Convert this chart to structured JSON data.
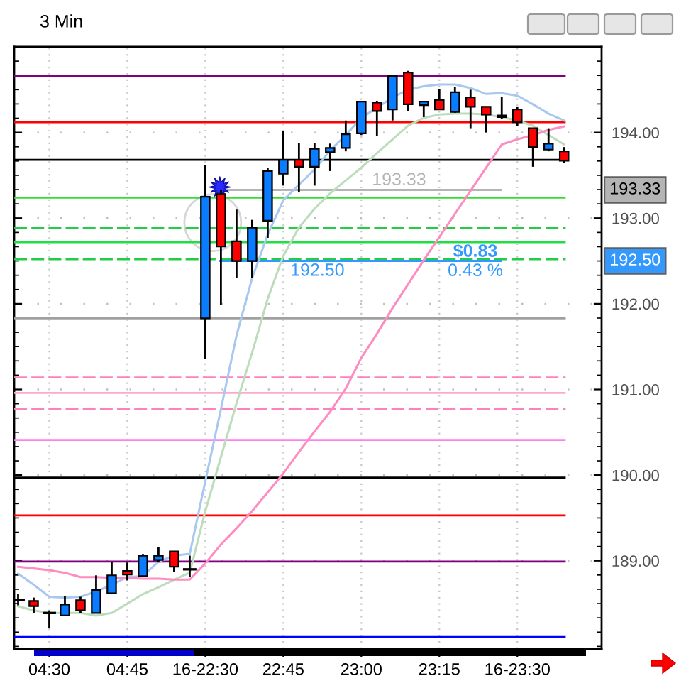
{
  "chart_data": {
    "type": "candlestick",
    "title": "3 Min",
    "categories": [
      null,
      null,
      "04:30",
      null,
      null,
      null,
      null,
      "04:45",
      null,
      null,
      null,
      null,
      "16-22:30",
      null,
      null,
      null,
      null,
      "22:45",
      null,
      null,
      null,
      null,
      "23:00",
      null,
      null,
      null,
      null,
      "23:15",
      null,
      null,
      null,
      null,
      "16-23:30",
      null,
      null,
      null
    ],
    "ohlc": [
      [
        188.54,
        188.61,
        188.48,
        188.54
      ],
      [
        188.53,
        188.57,
        188.39,
        188.47
      ],
      [
        188.39,
        188.42,
        188.21,
        188.39
      ],
      [
        188.36,
        188.59,
        188.36,
        188.49
      ],
      [
        188.54,
        188.58,
        188.39,
        188.42
      ],
      [
        188.39,
        188.83,
        188.39,
        188.66
      ],
      [
        188.62,
        188.99,
        188.62,
        188.83
      ],
      [
        188.88,
        188.98,
        188.77,
        188.84
      ],
      [
        188.82,
        189.08,
        188.82,
        189.06
      ],
      [
        189.01,
        189.16,
        188.98,
        189.06
      ],
      [
        189.11,
        189.11,
        188.87,
        188.93
      ],
      [
        188.9,
        189.06,
        188.81,
        188.9
      ],
      [
        191.83,
        193.62,
        191.36,
        193.25
      ],
      [
        193.28,
        193.33,
        191.99,
        192.67
      ],
      [
        192.73,
        193.1,
        192.3,
        192.5
      ],
      [
        192.5,
        192.98,
        192.3,
        192.89
      ],
      [
        192.97,
        193.59,
        192.77,
        193.55
      ],
      [
        193.52,
        194.02,
        193.38,
        193.68
      ],
      [
        193.68,
        193.88,
        193.3,
        193.6
      ],
      [
        193.6,
        193.88,
        193.38,
        193.81
      ],
      [
        193.77,
        193.87,
        193.55,
        193.82
      ],
      [
        193.82,
        194.14,
        193.78,
        193.98
      ],
      [
        193.99,
        194.36,
        193.97,
        194.36
      ],
      [
        194.35,
        194.37,
        193.96,
        194.25
      ],
      [
        194.27,
        194.67,
        194.14,
        194.66
      ],
      [
        194.7,
        194.72,
        194.25,
        194.33
      ],
      [
        194.32,
        194.36,
        194.18,
        194.36
      ],
      [
        194.38,
        194.51,
        194.27,
        194.27
      ],
      [
        194.24,
        194.53,
        194.23,
        194.47
      ],
      [
        194.41,
        194.5,
        194.05,
        194.3
      ],
      [
        194.3,
        194.3,
        194.0,
        194.21
      ],
      [
        194.18,
        194.42,
        194.16,
        194.2
      ],
      [
        194.27,
        194.3,
        194.08,
        194.12
      ],
      [
        194.05,
        194.05,
        193.6,
        193.83
      ],
      [
        193.8,
        194.05,
        193.78,
        193.87
      ],
      [
        193.78,
        193.83,
        193.64,
        193.67
      ]
    ],
    "colors": [
      "#000000",
      "#ff0000",
      "#000000",
      "#0a7cff",
      "#ff0000",
      "#0a7cff",
      "#0a7cff",
      "#ff0000",
      "#0a7cff",
      "#0a7cff",
      "#ff0000",
      "#000000",
      "#0a7cff",
      "#ff0000",
      "#ff0000",
      "#0a7cff",
      "#0a7cff",
      "#0a7cff",
      "#ff0000",
      "#0a7cff",
      "#0a7cff",
      "#0a7cff",
      "#0a7cff",
      "#ff0000",
      "#0a7cff",
      "#ff0000",
      "#0a7cff",
      "#ff0000",
      "#0a7cff",
      "#ff0000",
      "#ff0000",
      "#0a7cff",
      "#ff0000",
      "#ff0000",
      "#0a7cff",
      "#ff0000"
    ],
    "series": [
      {
        "type": "line",
        "color": "#a8c8f0",
        "values": [
          188.85,
          188.72,
          188.58,
          188.57,
          188.58,
          188.64,
          188.72,
          188.81,
          188.82,
          188.99,
          189.06,
          189.08,
          189.93,
          190.77,
          191.63,
          192.3,
          192.81,
          193.21,
          193.39,
          193.57,
          193.79,
          193.97,
          194.17,
          194.29,
          194.41,
          194.5,
          194.54,
          194.56,
          194.56,
          194.52,
          194.45,
          194.46,
          194.43,
          194.33,
          194.22,
          194.14
        ]
      },
      {
        "type": "line",
        "color": "#bcdcbc",
        "values": [
          188.47,
          188.42,
          188.39,
          188.39,
          188.39,
          188.36,
          188.39,
          188.5,
          188.61,
          188.69,
          188.78,
          188.86,
          189.58,
          190.21,
          190.84,
          191.43,
          192.06,
          192.56,
          192.89,
          193.11,
          193.29,
          193.44,
          193.59,
          193.76,
          193.92,
          194.08,
          194.17,
          194.21,
          194.22,
          194.22,
          194.21,
          194.18,
          194.14,
          194.08,
          193.97,
          193.86
        ]
      },
      {
        "type": "line",
        "color": "#ff8cc0",
        "values": [
          188.93,
          188.91,
          188.89,
          188.86,
          188.81,
          188.81,
          188.8,
          188.8,
          188.79,
          188.79,
          188.78,
          188.78,
          188.97,
          189.19,
          189.38,
          189.58,
          189.8,
          190.02,
          190.27,
          190.51,
          190.74,
          191.01,
          191.37,
          191.65,
          191.95,
          192.23,
          192.51,
          192.78,
          193.05,
          193.32,
          193.59,
          193.86,
          193.92,
          193.97,
          194.03,
          194.07
        ]
      }
    ],
    "ylim": [
      187.97,
      195.0
    ],
    "yticks": [
      {
        "value": 189,
        "label": "189.00"
      },
      {
        "value": 190,
        "label": "190.00"
      },
      {
        "value": 191,
        "label": "191.00"
      },
      {
        "value": 192,
        "label": "192.00"
      },
      {
        "value": 193,
        "label": "193.00"
      },
      {
        "value": 194,
        "label": "194.00"
      }
    ],
    "grid": true,
    "ref_lines": [
      {
        "axis": "y",
        "value": 194.66,
        "color": "#800080"
      },
      {
        "axis": "y",
        "value": 194.12,
        "color": "#ff0000"
      },
      {
        "axis": "y",
        "value": 193.68,
        "color": "#000000"
      },
      {
        "axis": "y",
        "value": 193.24,
        "color": "#33dd33"
      },
      {
        "axis": "y",
        "value": 192.89,
        "color": "#22cc44",
        "line_style": "dashed"
      },
      {
        "axis": "y",
        "value": 192.72,
        "color": "#22dd44"
      },
      {
        "axis": "y",
        "value": 192.52,
        "color": "#22cc44",
        "line_style": "dashed"
      },
      {
        "axis": "y",
        "value": 191.83,
        "color": "#a0a0a0"
      },
      {
        "axis": "y",
        "value": 191.14,
        "color": "#ff80c0",
        "line_style": "dashed"
      },
      {
        "axis": "y",
        "value": 190.96,
        "color": "#ffa8cc"
      },
      {
        "axis": "y",
        "value": 190.77,
        "color": "#ff80c0",
        "line_style": "dashed"
      },
      {
        "axis": "y",
        "value": 190.41,
        "color": "#ff80f0"
      },
      {
        "axis": "y",
        "value": 189.97,
        "color": "#000000"
      },
      {
        "axis": "y",
        "value": 189.53,
        "color": "#ff0000"
      },
      {
        "axis": "y",
        "value": 188.99,
        "color": "#800080"
      },
      {
        "axis": "y",
        "value": 188.11,
        "color": "#0000ff"
      },
      {
        "axis": "y",
        "value": 193.33,
        "label": "193.33",
        "color": "#b4b4b4"
      },
      {
        "axis": "y",
        "value": 192.5,
        "label": "192.50",
        "color": "#3399ff"
      }
    ],
    "annotations": [
      "$0.83",
      "0.43 %"
    ]
  }
}
